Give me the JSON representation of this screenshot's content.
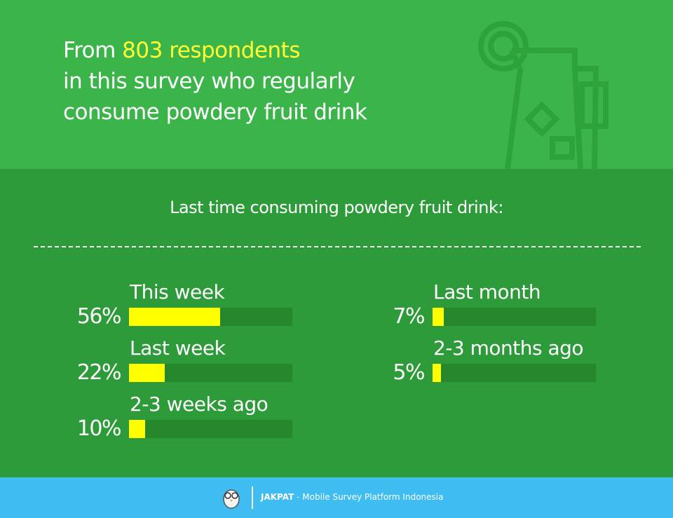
{
  "header": {
    "title_lead": "From",
    "title_highlight": "803 respondents",
    "title_line2": "in this survey who regularly",
    "title_line3": "consume powdery fruit drink"
  },
  "chart_data": {
    "type": "bar",
    "orientation": "horizontal",
    "title": "Last time consuming powdery fruit drink:",
    "categories": [
      "This week",
      "Last week",
      "2-3 weeks ago",
      "Last month",
      "2-3 months ago"
    ],
    "values": [
      56,
      22,
      10,
      7,
      5
    ],
    "value_labels": [
      "56%",
      "22%",
      "10%",
      "7%",
      "5%"
    ],
    "xlim": [
      0,
      100
    ],
    "color": "#ffff00",
    "track_color": "#26862c"
  },
  "footer": {
    "brand": "JAKPAT",
    "text": "- Mobile Survey Platform Indonesia"
  }
}
